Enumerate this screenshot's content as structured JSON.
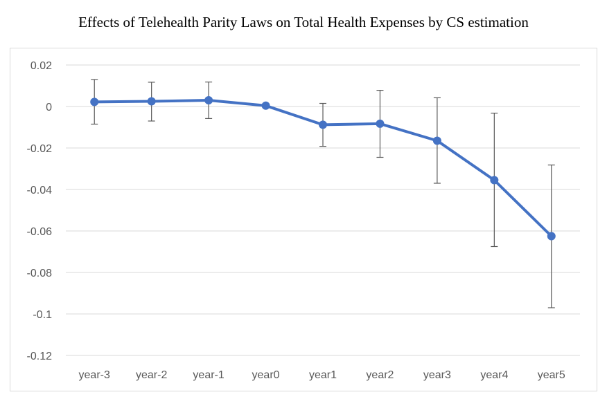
{
  "chart_data": {
    "type": "line",
    "title": "Effects of Telehealth Parity Laws on Total Health Expenses by CS estimation",
    "xlabel": "",
    "ylabel": "",
    "categories": [
      "year-3",
      "year-2",
      "year-1",
      "year0",
      "year1",
      "year2",
      "year3",
      "year4",
      "year5"
    ],
    "series": [
      {
        "values": [
          0.0022,
          0.0025,
          0.003,
          0.0004,
          -0.0088,
          -0.0083,
          -0.0165,
          -0.0355,
          -0.0625
        ],
        "lower": [
          -0.0085,
          -0.007,
          -0.0058,
          0.0004,
          -0.0192,
          -0.0245,
          -0.037,
          -0.0675,
          -0.097
        ],
        "upper": [
          0.013,
          0.0117,
          0.0118,
          0.0004,
          0.0015,
          0.0078,
          0.0042,
          -0.0032,
          -0.0282
        ],
        "color": "#4472c4"
      }
    ],
    "ylim": [
      -0.12,
      0.02
    ],
    "yticks": [
      "0.02",
      "0",
      "-0.02",
      "-0.04",
      "-0.06",
      "-0.08",
      "-0.1",
      "-0.12"
    ],
    "ytick_values": [
      0.02,
      0,
      -0.02,
      -0.04,
      -0.06,
      -0.08,
      -0.1,
      -0.12
    ],
    "grid": true,
    "legend": "none",
    "colors": {
      "line": "#4472c4",
      "errorbar": "#595959",
      "grid": "#d9d9d9"
    }
  }
}
